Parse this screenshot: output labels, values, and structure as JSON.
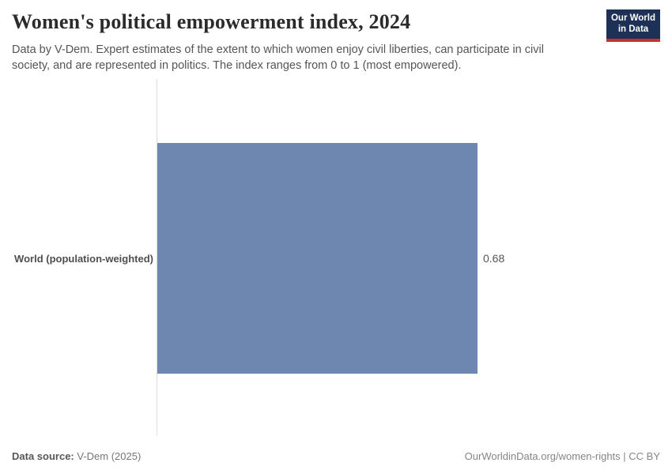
{
  "header": {
    "title": "Women's political empowerment index, 2024",
    "subtitle": "Data by V-Dem. Expert estimates of the extent to which women enjoy civil liberties, can participate in civil society, and are represented in politics. The index ranges from 0 to 1 (most empowered).",
    "logo": {
      "line1": "Our World",
      "line2": "in Data",
      "bg_color": "#1d3156",
      "accent_color": "#c5342c"
    }
  },
  "chart_data": {
    "type": "bar",
    "orientation": "horizontal",
    "title": "Women's political empowerment index, 2024",
    "categories": [
      "World (population-weighted)"
    ],
    "values": [
      0.68
    ],
    "value_labels": [
      "0.68"
    ],
    "xlim": [
      0,
      1
    ],
    "grid": false,
    "bar_color": "#6d87b1",
    "axis_line_color": "#dcdcdc"
  },
  "footer": {
    "source_label": "Data source:",
    "source_value": " V-Dem (2025)",
    "credit": "OurWorldinData.org/women-rights | CC BY"
  }
}
